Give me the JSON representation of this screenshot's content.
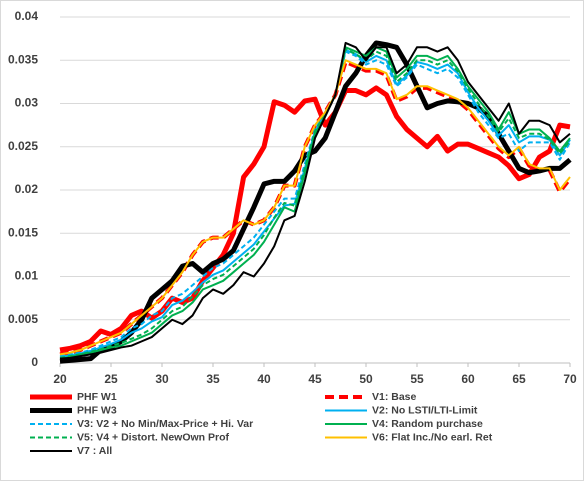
{
  "chart_data": {
    "type": "line",
    "x": [
      20,
      21,
      22,
      23,
      24,
      25,
      26,
      27,
      28,
      29,
      30,
      31,
      32,
      33,
      34,
      35,
      36,
      37,
      38,
      39,
      40,
      41,
      42,
      43,
      44,
      45,
      46,
      47,
      48,
      49,
      50,
      51,
      52,
      53,
      54,
      55,
      56,
      57,
      58,
      59,
      60,
      61,
      62,
      63,
      64,
      65,
      66,
      67,
      68,
      69,
      70
    ],
    "xlim": [
      20,
      70
    ],
    "xticks": [
      20,
      25,
      30,
      35,
      40,
      45,
      50,
      55,
      60,
      65,
      70
    ],
    "ylim": [
      0,
      0.04
    ],
    "yticks": [
      0,
      0.005,
      0.01,
      0.015,
      0.02,
      0.025,
      0.03,
      0.035,
      0.04
    ],
    "grid": true,
    "series": [
      {
        "name": "PHF W1",
        "color": "#ff0000",
        "width": 5,
        "dash": false,
        "values": [
          0.0015,
          0.0017,
          0.002,
          0.0025,
          0.0037,
          0.0033,
          0.004,
          0.0055,
          0.006,
          0.0052,
          0.006,
          0.0075,
          0.007,
          0.0075,
          0.0095,
          0.011,
          0.0125,
          0.015,
          0.0215,
          0.023,
          0.025,
          0.0302,
          0.0298,
          0.029,
          0.0303,
          0.0305,
          0.0275,
          0.029,
          0.0315,
          0.0315,
          0.031,
          0.0318,
          0.031,
          0.0285,
          0.027,
          0.026,
          0.025,
          0.0262,
          0.0245,
          0.0253,
          0.0253,
          0.0248,
          0.0243,
          0.0238,
          0.0228,
          0.0213,
          0.0218,
          0.0238,
          0.0245,
          0.0275,
          0.0273
        ]
      },
      {
        "name": "V1: Base",
        "color": "#ff0000",
        "width": 4,
        "dash": true,
        "values": [
          0.001,
          0.0012,
          0.0015,
          0.002,
          0.0025,
          0.003,
          0.0035,
          0.0045,
          0.0055,
          0.0065,
          0.0075,
          0.009,
          0.0105,
          0.0125,
          0.014,
          0.0145,
          0.0145,
          0.0155,
          0.0165,
          0.016,
          0.0165,
          0.018,
          0.0205,
          0.0205,
          0.025,
          0.0275,
          0.029,
          0.031,
          0.0348,
          0.0343,
          0.0338,
          0.0338,
          0.0333,
          0.0303,
          0.0308,
          0.0318,
          0.0318,
          0.0313,
          0.0308,
          0.0303,
          0.0293,
          0.0278,
          0.0263,
          0.0248,
          0.0238,
          0.0248,
          0.0228,
          0.0223,
          0.0223,
          0.0198,
          0.0213
        ]
      },
      {
        "name": "PHF W3",
        "color": "#000000",
        "width": 5,
        "dash": false,
        "values": [
          0.0002,
          0.0003,
          0.0004,
          0.0005,
          0.0015,
          0.0018,
          0.0025,
          0.0035,
          0.005,
          0.0075,
          0.0085,
          0.0095,
          0.0112,
          0.0115,
          0.0105,
          0.0115,
          0.012,
          0.013,
          0.0155,
          0.018,
          0.0207,
          0.021,
          0.021,
          0.0222,
          0.024,
          0.0245,
          0.026,
          0.029,
          0.032,
          0.0335,
          0.0355,
          0.037,
          0.0368,
          0.0365,
          0.0345,
          0.032,
          0.0295,
          0.03,
          0.0303,
          0.0302,
          0.03,
          0.0295,
          0.0285,
          0.0265,
          0.0245,
          0.0225,
          0.022,
          0.0222,
          0.0225,
          0.0225,
          0.0235
        ]
      },
      {
        "name": "V2: No LSTI/LTI-Limit",
        "color": "#00b0f0",
        "width": 2,
        "dash": false,
        "values": [
          0.0007,
          0.0009,
          0.0011,
          0.0014,
          0.0018,
          0.0022,
          0.0027,
          0.0035,
          0.004,
          0.0048,
          0.0053,
          0.0067,
          0.0072,
          0.0082,
          0.0093,
          0.0102,
          0.0107,
          0.0117,
          0.0127,
          0.0137,
          0.0152,
          0.0167,
          0.0182,
          0.0184,
          0.0225,
          0.0268,
          0.0288,
          0.031,
          0.0362,
          0.0357,
          0.0348,
          0.0355,
          0.035,
          0.0322,
          0.0332,
          0.0348,
          0.0345,
          0.034,
          0.0345,
          0.0335,
          0.0313,
          0.0295,
          0.028,
          0.0263,
          0.0275,
          0.0255,
          0.0262,
          0.0262,
          0.0258,
          0.024,
          0.0258
        ]
      },
      {
        "name": "V3: V2 + No Min/Max-Price + Hi. Var",
        "color": "#00b0f0",
        "width": 2,
        "dash": true,
        "values": [
          0.0008,
          0.001,
          0.0012,
          0.0015,
          0.002,
          0.0025,
          0.003,
          0.004,
          0.0045,
          0.0055,
          0.006,
          0.0075,
          0.008,
          0.009,
          0.01,
          0.011,
          0.0115,
          0.0125,
          0.0135,
          0.0145,
          0.016,
          0.0175,
          0.019,
          0.019,
          0.023,
          0.027,
          0.029,
          0.031,
          0.036,
          0.0355,
          0.0345,
          0.035,
          0.0345,
          0.032,
          0.033,
          0.0345,
          0.034,
          0.0335,
          0.034,
          0.033,
          0.031,
          0.029,
          0.0275,
          0.026,
          0.0265,
          0.0245,
          0.0255,
          0.0255,
          0.0255,
          0.0235,
          0.0255
        ]
      },
      {
        "name": "V4: Random purchase",
        "color": "#00b050",
        "width": 2,
        "dash": false,
        "values": [
          0.0005,
          0.0007,
          0.001,
          0.0012,
          0.0015,
          0.0018,
          0.002,
          0.0025,
          0.003,
          0.0035,
          0.0045,
          0.0055,
          0.006,
          0.007,
          0.0085,
          0.009,
          0.0095,
          0.0105,
          0.0115,
          0.0125,
          0.014,
          0.016,
          0.018,
          0.0175,
          0.022,
          0.0265,
          0.0285,
          0.031,
          0.0365,
          0.036,
          0.0355,
          0.0365,
          0.036,
          0.033,
          0.034,
          0.0355,
          0.0355,
          0.035,
          0.0355,
          0.034,
          0.032,
          0.0305,
          0.029,
          0.027,
          0.029,
          0.0265,
          0.027,
          0.027,
          0.026,
          0.0245,
          0.026
        ]
      },
      {
        "name": "V5: V4 + Distort. NewOwn Prof",
        "color": "#00b050",
        "width": 2,
        "dash": true,
        "values": [
          0.0006,
          0.0008,
          0.001,
          0.0013,
          0.0016,
          0.002,
          0.0023,
          0.0028,
          0.0033,
          0.004,
          0.005,
          0.006,
          0.0065,
          0.0077,
          0.009,
          0.0097,
          0.0102,
          0.0112,
          0.0122,
          0.0132,
          0.0148,
          0.0168,
          0.0185,
          0.0182,
          0.0225,
          0.0268,
          0.0288,
          0.031,
          0.0363,
          0.0357,
          0.035,
          0.036,
          0.0355,
          0.0325,
          0.0335,
          0.035,
          0.035,
          0.0345,
          0.035,
          0.0337,
          0.0317,
          0.03,
          0.0285,
          0.0267,
          0.0283,
          0.026,
          0.0265,
          0.0265,
          0.0258,
          0.0242,
          0.0257
        ]
      },
      {
        "name": "V6: Flat Inc./No earl. Ret",
        "color": "#ffc000",
        "width": 2,
        "dash": false,
        "values": [
          0.001,
          0.0012,
          0.0015,
          0.002,
          0.0025,
          0.003,
          0.0035,
          0.0045,
          0.0055,
          0.0065,
          0.0075,
          0.009,
          0.0105,
          0.0125,
          0.014,
          0.0145,
          0.0145,
          0.0155,
          0.0165,
          0.016,
          0.0165,
          0.018,
          0.0205,
          0.0205,
          0.025,
          0.0275,
          0.029,
          0.031,
          0.035,
          0.0345,
          0.034,
          0.034,
          0.0335,
          0.0305,
          0.031,
          0.032,
          0.032,
          0.0315,
          0.031,
          0.0305,
          0.0295,
          0.028,
          0.0265,
          0.025,
          0.024,
          0.025,
          0.023,
          0.0225,
          0.0225,
          0.02,
          0.0215
        ]
      },
      {
        "name": "V7 : All",
        "color": "#000000",
        "width": 2,
        "dash": false,
        "values": [
          0.0005,
          0.0006,
          0.0008,
          0.001,
          0.0012,
          0.0015,
          0.0018,
          0.002,
          0.0025,
          0.003,
          0.004,
          0.005,
          0.0045,
          0.0055,
          0.0075,
          0.0085,
          0.008,
          0.009,
          0.0105,
          0.01,
          0.0115,
          0.0135,
          0.0165,
          0.017,
          0.021,
          0.026,
          0.0285,
          0.031,
          0.037,
          0.0365,
          0.035,
          0.0365,
          0.0365,
          0.0335,
          0.0345,
          0.0365,
          0.0365,
          0.036,
          0.0365,
          0.035,
          0.0325,
          0.031,
          0.0295,
          0.028,
          0.03,
          0.0265,
          0.028,
          0.028,
          0.0275,
          0.0255,
          0.0265
        ]
      }
    ]
  }
}
